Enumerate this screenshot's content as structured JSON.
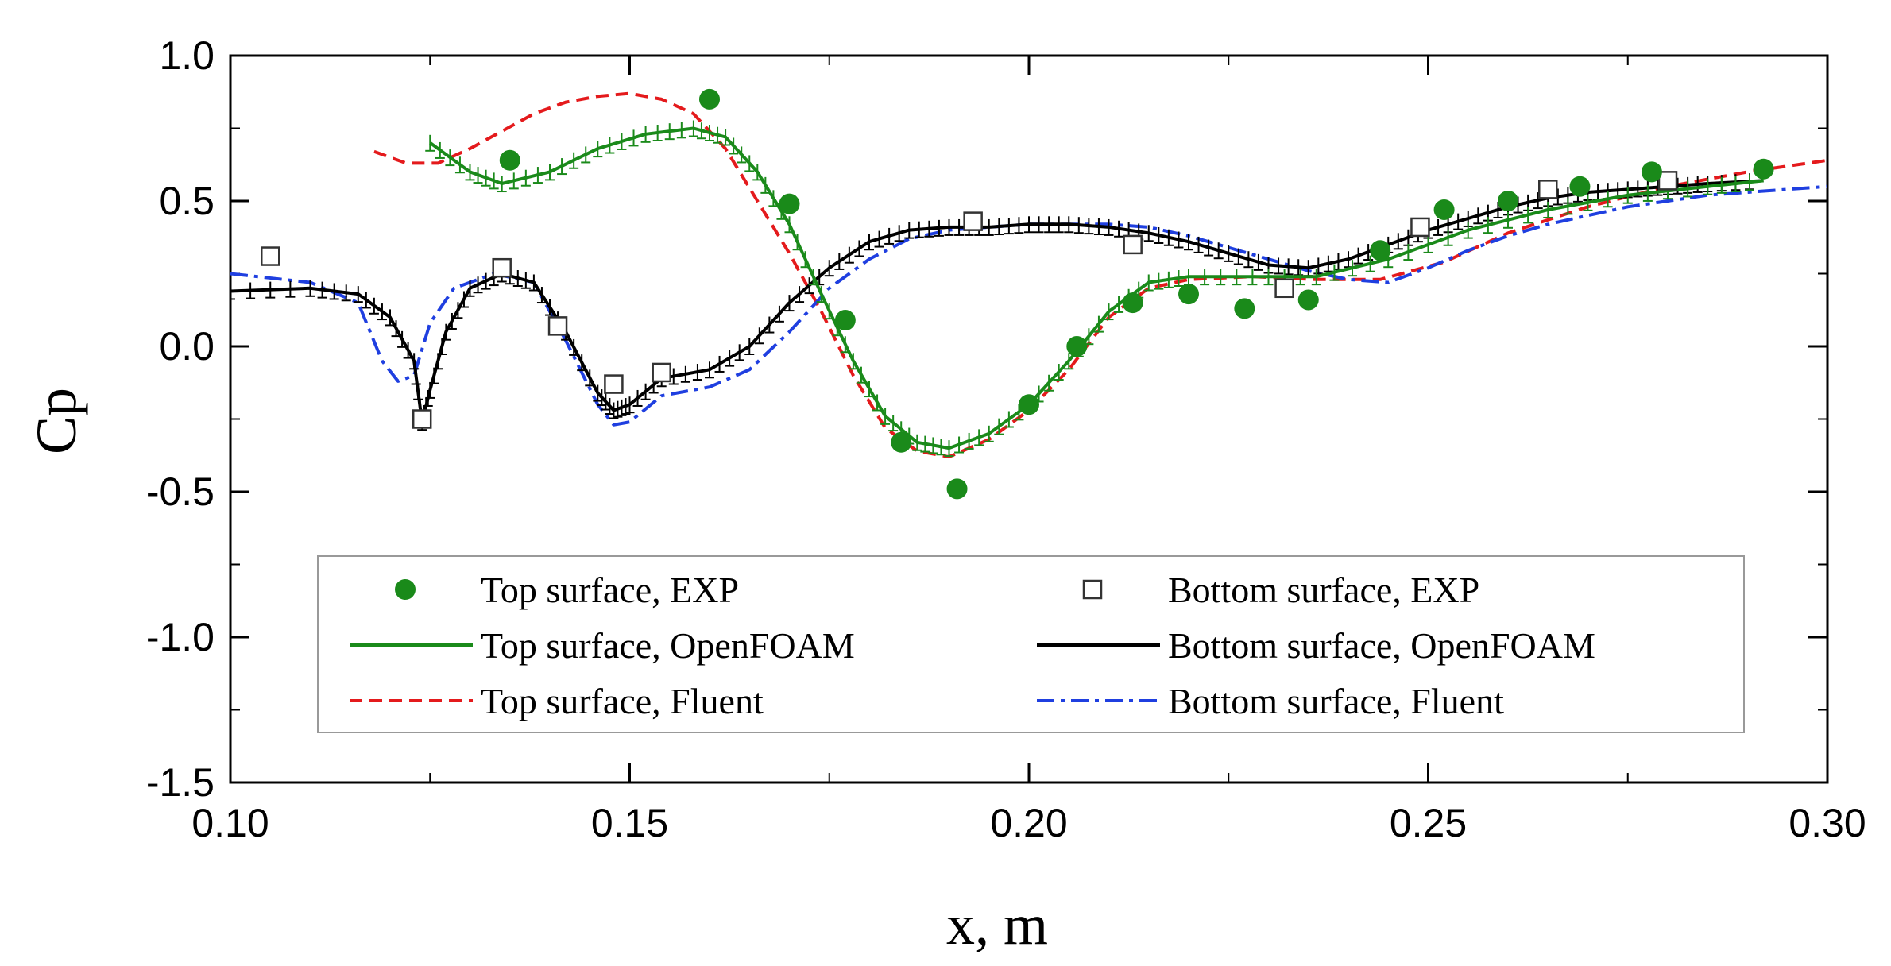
{
  "chart_data": {
    "type": "line",
    "title": "",
    "xlabel": "x, m",
    "ylabel": "Cp",
    "xlim": [
      0.1,
      0.3
    ],
    "ylim": [
      -1.5,
      1.0
    ],
    "grid": false,
    "legend_position": "bottom-center",
    "x_ticks": [
      0.1,
      0.15,
      0.2,
      0.25,
      0.3
    ],
    "x_tick_labels": [
      "0.10",
      "0.15",
      "0.20",
      "0.25",
      "0.30"
    ],
    "y_ticks": [
      1.0,
      0.5,
      0.0,
      -0.5,
      -1.0,
      -1.5
    ],
    "y_tick_labels": [
      "1.0",
      "0.5",
      "0.0",
      "-0.5",
      "-1.0",
      "-1.5"
    ],
    "series": [
      {
        "name": "Top surface, EXP",
        "kind": "marker",
        "marker": "circle",
        "color": "#1a8a1a",
        "x": [
          0.135,
          0.16,
          0.17,
          0.177,
          0.184,
          0.191,
          0.2,
          0.206,
          0.213,
          0.22,
          0.227,
          0.235,
          0.244,
          0.252,
          0.26,
          0.269,
          0.278,
          0.292
        ],
        "y": [
          0.64,
          0.85,
          0.49,
          0.09,
          -0.33,
          -0.49,
          -0.2,
          0.0,
          0.15,
          0.18,
          0.13,
          0.16,
          0.33,
          0.47,
          0.5,
          0.55,
          0.6,
          0.61
        ]
      },
      {
        "name": "Bottom surface, EXP",
        "kind": "marker",
        "marker": "square",
        "color": "#333333",
        "x": [
          0.105,
          0.124,
          0.134,
          0.141,
          0.148,
          0.154,
          0.193,
          0.213,
          0.232,
          0.249,
          0.265,
          0.28
        ],
        "y": [
          0.31,
          -0.25,
          0.27,
          0.07,
          -0.13,
          -0.09,
          0.43,
          0.35,
          0.2,
          0.41,
          0.54,
          0.57
        ]
      },
      {
        "name": "Top surface, OpenFOAM",
        "kind": "line",
        "style": "solid",
        "color": "#1a8a1a",
        "x": [
          0.125,
          0.13,
          0.134,
          0.14,
          0.146,
          0.152,
          0.158,
          0.162,
          0.166,
          0.17,
          0.174,
          0.178,
          0.182,
          0.186,
          0.19,
          0.195,
          0.2,
          0.205,
          0.21,
          0.215,
          0.22,
          0.228,
          0.236,
          0.245,
          0.255,
          0.265,
          0.275,
          0.285,
          0.292
        ],
        "y": [
          0.7,
          0.6,
          0.56,
          0.6,
          0.68,
          0.73,
          0.75,
          0.72,
          0.6,
          0.42,
          0.18,
          -0.05,
          -0.24,
          -0.33,
          -0.35,
          -0.3,
          -0.2,
          -0.05,
          0.12,
          0.22,
          0.24,
          0.24,
          0.24,
          0.3,
          0.4,
          0.47,
          0.52,
          0.55,
          0.57
        ]
      },
      {
        "name": "Bottom surface, OpenFOAM",
        "kind": "line",
        "style": "solid",
        "color": "#000000",
        "x": [
          0.1,
          0.11,
          0.116,
          0.12,
          0.123,
          0.124,
          0.125,
          0.127,
          0.13,
          0.134,
          0.138,
          0.142,
          0.146,
          0.148,
          0.15,
          0.154,
          0.16,
          0.165,
          0.17,
          0.175,
          0.18,
          0.185,
          0.19,
          0.195,
          0.2,
          0.205,
          0.21,
          0.215,
          0.22,
          0.225,
          0.23,
          0.235,
          0.24,
          0.245,
          0.25,
          0.255,
          0.26,
          0.265,
          0.27,
          0.275,
          0.28,
          0.285,
          0.292
        ],
        "y": [
          0.19,
          0.2,
          0.18,
          0.1,
          -0.05,
          -0.26,
          -0.15,
          0.05,
          0.2,
          0.25,
          0.22,
          0.05,
          -0.16,
          -0.22,
          -0.2,
          -0.11,
          -0.08,
          0.0,
          0.15,
          0.27,
          0.36,
          0.4,
          0.41,
          0.41,
          0.42,
          0.42,
          0.41,
          0.39,
          0.36,
          0.32,
          0.28,
          0.27,
          0.3,
          0.35,
          0.4,
          0.44,
          0.48,
          0.51,
          0.53,
          0.54,
          0.55,
          0.56,
          0.57
        ]
      },
      {
        "name": "Top surface, Fluent",
        "kind": "line",
        "style": "dashed",
        "color": "#e41a1c",
        "x": [
          0.118,
          0.122,
          0.126,
          0.13,
          0.134,
          0.138,
          0.142,
          0.146,
          0.15,
          0.154,
          0.158,
          0.162,
          0.166,
          0.17,
          0.174,
          0.178,
          0.182,
          0.186,
          0.19,
          0.195,
          0.2,
          0.205,
          0.21,
          0.215,
          0.22,
          0.228,
          0.236,
          0.244,
          0.252,
          0.26,
          0.27,
          0.28,
          0.29,
          0.3
        ],
        "y": [
          0.67,
          0.63,
          0.63,
          0.68,
          0.74,
          0.8,
          0.84,
          0.86,
          0.87,
          0.85,
          0.8,
          0.68,
          0.5,
          0.32,
          0.12,
          -0.1,
          -0.28,
          -0.36,
          -0.38,
          -0.32,
          -0.22,
          -0.08,
          0.1,
          0.2,
          0.23,
          0.24,
          0.23,
          0.23,
          0.29,
          0.39,
          0.48,
          0.55,
          0.6,
          0.64
        ]
      },
      {
        "name": "Bottom surface, Fluent",
        "kind": "line",
        "style": "dashdot",
        "color": "#1f3fe0",
        "x": [
          0.1,
          0.11,
          0.116,
          0.119,
          0.121,
          0.123,
          0.125,
          0.128,
          0.133,
          0.138,
          0.142,
          0.146,
          0.148,
          0.15,
          0.154,
          0.16,
          0.165,
          0.17,
          0.175,
          0.18,
          0.185,
          0.19,
          0.195,
          0.2,
          0.205,
          0.21,
          0.215,
          0.22,
          0.225,
          0.23,
          0.235,
          0.24,
          0.245,
          0.25,
          0.255,
          0.26,
          0.265,
          0.27,
          0.275,
          0.28,
          0.285,
          0.29,
          0.3
        ],
        "y": [
          0.25,
          0.22,
          0.15,
          -0.05,
          -0.12,
          -0.1,
          0.08,
          0.2,
          0.25,
          0.22,
          0.02,
          -0.2,
          -0.27,
          -0.26,
          -0.17,
          -0.14,
          -0.08,
          0.05,
          0.2,
          0.3,
          0.37,
          0.4,
          0.41,
          0.42,
          0.42,
          0.42,
          0.41,
          0.38,
          0.34,
          0.3,
          0.26,
          0.23,
          0.22,
          0.27,
          0.33,
          0.38,
          0.42,
          0.45,
          0.48,
          0.5,
          0.52,
          0.53,
          0.55
        ]
      }
    ],
    "legend": {
      "entries": [
        "Top surface, EXP",
        "Bottom surface, EXP",
        "Top surface, OpenFOAM",
        "Bottom surface, OpenFOAM",
        "Top surface, Fluent",
        "Bottom surface, Fluent"
      ]
    }
  }
}
